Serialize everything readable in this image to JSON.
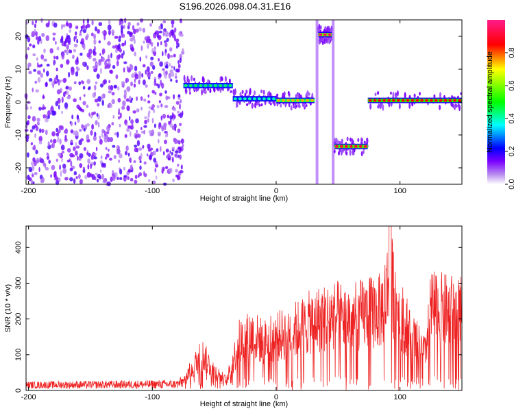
{
  "title": "S196.2026.098.04.31.E16",
  "colorbar": {
    "label": "Normalized spectral amplitude",
    "range": [
      0,
      1
    ],
    "ticks": [
      "0.0",
      "0.2",
      "0.4",
      "0.6",
      "0.8"
    ],
    "colormap": [
      "#ffffff",
      "#8a2be2",
      "#0000ff",
      "#00ffff",
      "#00ff00",
      "#ffff00",
      "#ff0000",
      "#ff00ff"
    ]
  },
  "chart_data": [
    {
      "type": "heatmap",
      "xlabel": "Height of straight line (km)",
      "ylabel": "Frequency (Hz)",
      "xlim": [
        -202,
        150
      ],
      "ylim": [
        -25,
        25
      ],
      "x_ticks": [
        "-200",
        "-100",
        "0",
        "100"
      ],
      "y_ticks": [
        "-20",
        "-10",
        "0",
        "10",
        "20"
      ],
      "segments": [
        {
          "x": [
            -202,
            -75
          ],
          "freq": null,
          "desc": "noise",
          "amplitude": 0.1
        },
        {
          "x": [
            -75,
            -35
          ],
          "freq": 5,
          "amplitude": 0.45
        },
        {
          "x": [
            -35,
            0
          ],
          "freq": 1,
          "amplitude": 0.4
        },
        {
          "x": [
            0,
            31
          ],
          "freq": 0.5,
          "amplitude": 0.75
        },
        {
          "x": [
            34,
            45
          ],
          "freq": 20.5,
          "amplitude": 0.95
        },
        {
          "x": [
            47,
            74
          ],
          "freq": -13.5,
          "amplitude": 0.9
        },
        {
          "x": [
            74,
            150
          ],
          "freq": 0.5,
          "amplitude": 0.85
        }
      ]
    },
    {
      "type": "line",
      "xlabel": "Height of straight line (km)",
      "ylabel": "SNR (10 * v/v)",
      "xlim": [
        -202,
        150
      ],
      "ylim": [
        0,
        460
      ],
      "x_ticks": [
        "-200",
        "-100",
        "0",
        "100"
      ],
      "y_ticks": [
        "0",
        "100",
        "200",
        "300",
        "400"
      ],
      "color": "#ee2222",
      "envelope": [
        {
          "x": -202,
          "y": 20
        },
        {
          "x": -80,
          "y": 25
        },
        {
          "x": -75,
          "y": 40
        },
        {
          "x": -60,
          "y": 150
        },
        {
          "x": -50,
          "y": 80
        },
        {
          "x": -40,
          "y": 40
        },
        {
          "x": -30,
          "y": 200
        },
        {
          "x": -20,
          "y": 230
        },
        {
          "x": -10,
          "y": 200
        },
        {
          "x": 0,
          "y": 220
        },
        {
          "x": 20,
          "y": 260
        },
        {
          "x": 30,
          "y": 290
        },
        {
          "x": 50,
          "y": 310
        },
        {
          "x": 60,
          "y": 300
        },
        {
          "x": 75,
          "y": 320
        },
        {
          "x": 85,
          "y": 330
        },
        {
          "x": 92,
          "y": 460
        },
        {
          "x": 100,
          "y": 320
        },
        {
          "x": 110,
          "y": 220
        },
        {
          "x": 120,
          "y": 150
        },
        {
          "x": 125,
          "y": 340
        },
        {
          "x": 135,
          "y": 330
        },
        {
          "x": 150,
          "y": 320
        }
      ]
    }
  ]
}
